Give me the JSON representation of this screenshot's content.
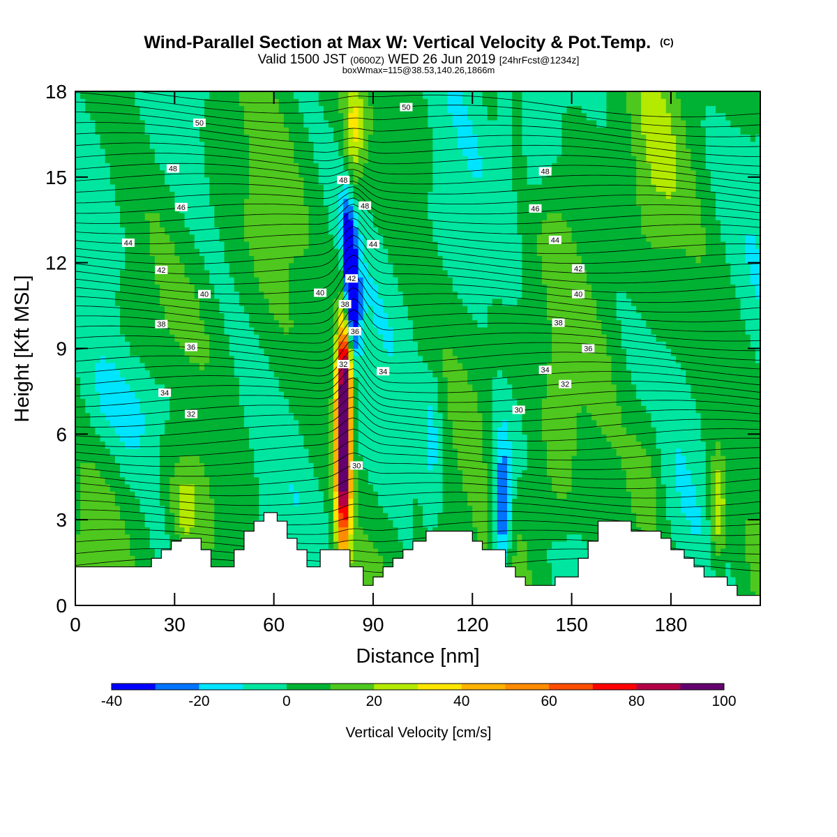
{
  "chart_data": {
    "type": "heatmap",
    "title": "Wind-Parallel Section at Max W: Vertical Velocity & Pot.Temp.",
    "title_mark": "(C)",
    "subtitle_parts": [
      "Valid 1500 JST ",
      "(0600Z)",
      " WED 26 Jun 2019 ",
      "[24hrFcst@1234z]"
    ],
    "subtitle2": "boxWmax=115@38.53,140.26,1866m",
    "xlabel": "Distance [nm]",
    "ylabel": "Height [Kft MSL]",
    "xlim": [
      0,
      207
    ],
    "ylim": [
      0,
      18
    ],
    "x_ticks": [
      0,
      30,
      60,
      90,
      120,
      150,
      180
    ],
    "y_ticks": [
      0,
      3,
      6,
      9,
      12,
      15,
      18
    ],
    "colorbar": {
      "label": "Vertical Velocity [cm/s]",
      "levels": [
        -40,
        -30,
        -20,
        -10,
        0,
        10,
        20,
        30,
        40,
        50,
        60,
        70,
        80,
        90,
        100
      ],
      "tick_labels": [
        "-40",
        "-20",
        "0",
        "20",
        "40",
        "60",
        "80",
        "100"
      ],
      "colors": [
        "#0000ff",
        "#0073ff",
        "#00e5ff",
        "#00e6a0",
        "#00b233",
        "#4ec81e",
        "#b4ea00",
        "#ffe600",
        "#ffb300",
        "#ff8c00",
        "#ff4d00",
        "#ff0000",
        "#b40046",
        "#64006e"
      ]
    },
    "terrain_kft": [
      [
        0,
        1.35
      ],
      [
        23,
        1.35
      ],
      [
        23,
        1.65
      ],
      [
        26,
        1.65
      ],
      [
        26,
        1.95
      ],
      [
        29,
        1.95
      ],
      [
        29,
        2.25
      ],
      [
        32,
        2.25
      ],
      [
        32,
        2.35
      ],
      [
        38,
        2.35
      ],
      [
        38,
        1.95
      ],
      [
        41,
        1.95
      ],
      [
        41,
        1.35
      ],
      [
        48,
        1.35
      ],
      [
        48,
        1.95
      ],
      [
        51,
        1.95
      ],
      [
        51,
        2.6
      ],
      [
        54,
        2.6
      ],
      [
        54,
        2.95
      ],
      [
        57,
        2.95
      ],
      [
        57,
        3.25
      ],
      [
        61,
        3.25
      ],
      [
        61,
        2.95
      ],
      [
        64,
        2.95
      ],
      [
        64,
        2.35
      ],
      [
        67,
        2.35
      ],
      [
        67,
        1.95
      ],
      [
        70,
        1.95
      ],
      [
        70,
        1.35
      ],
      [
        74,
        1.35
      ],
      [
        74,
        1.95
      ],
      [
        77,
        1.95
      ],
      [
        77,
        1.95
      ],
      [
        83,
        1.95
      ],
      [
        83,
        1.35
      ],
      [
        87,
        1.35
      ],
      [
        87,
        0.7
      ],
      [
        90,
        0.7
      ],
      [
        90,
        1.0
      ],
      [
        93,
        1.0
      ],
      [
        93,
        1.35
      ],
      [
        96,
        1.35
      ],
      [
        96,
        1.65
      ],
      [
        99,
        1.65
      ],
      [
        99,
        1.95
      ],
      [
        102,
        1.95
      ],
      [
        102,
        2.25
      ],
      [
        106,
        2.25
      ],
      [
        106,
        2.6
      ],
      [
        120,
        2.6
      ],
      [
        120,
        2.25
      ],
      [
        123,
        2.25
      ],
      [
        123,
        1.95
      ],
      [
        130,
        1.95
      ],
      [
        130,
        1.35
      ],
      [
        133,
        1.35
      ],
      [
        133,
        1.0
      ],
      [
        136,
        1.0
      ],
      [
        136,
        0.7
      ],
      [
        145,
        0.7
      ],
      [
        145,
        1.0
      ],
      [
        152,
        1.0
      ],
      [
        152,
        1.65
      ],
      [
        155,
        1.65
      ],
      [
        155,
        2.25
      ],
      [
        158,
        2.25
      ],
      [
        158,
        2.95
      ],
      [
        168,
        2.95
      ],
      [
        168,
        2.6
      ],
      [
        177,
        2.6
      ],
      [
        177,
        2.35
      ],
      [
        180,
        2.35
      ],
      [
        180,
        1.95
      ],
      [
        184,
        1.95
      ],
      [
        184,
        1.65
      ],
      [
        187,
        1.65
      ],
      [
        187,
        1.35
      ],
      [
        190,
        1.35
      ],
      [
        190,
        1.0
      ],
      [
        197,
        1.0
      ],
      [
        197,
        0.7
      ],
      [
        200,
        0.7
      ],
      [
        200,
        0.35
      ],
      [
        207,
        0.35
      ]
    ],
    "w_features": [
      {
        "x": 81,
        "y": 5.8,
        "amp": 115,
        "sx": 1.6,
        "sy": 2.7
      },
      {
        "x": 82,
        "y": 8.6,
        "amp": 35,
        "sx": 1.6,
        "sy": 0.9
      },
      {
        "x": 84,
        "y": 10.2,
        "amp": -45,
        "sx": 1.5,
        "sy": 1.3
      },
      {
        "x": 83,
        "y": 11.8,
        "amp": -38,
        "sx": 1.3,
        "sy": 1.2
      },
      {
        "x": 84,
        "y": 16.5,
        "amp": 25,
        "sx": 2.0,
        "sy": 1.6
      },
      {
        "x": 129,
        "y": 3.2,
        "amp": -45,
        "sx": 2.0,
        "sy": 1.4
      },
      {
        "x": 128,
        "y": 5.5,
        "amp": -15,
        "sx": 3.5,
        "sy": 1.2
      },
      {
        "x": 194,
        "y": 3.3,
        "amp": 30,
        "sx": 1.7,
        "sy": 1.4
      },
      {
        "x": 33,
        "y": 3.2,
        "amp": 18,
        "sx": 3,
        "sy": 1
      },
      {
        "x": 21,
        "y": 6.9,
        "amp": -14,
        "sx": 14,
        "sy": 1.3
      },
      {
        "x": 82,
        "y": 13.5,
        "amp": -20,
        "sx": 1.5,
        "sy": 1.3
      },
      {
        "x": 146,
        "y": 5.5,
        "amp": 14,
        "sx": 3.5,
        "sy": 2.5
      },
      {
        "x": 173,
        "y": 4.5,
        "amp": 12,
        "sx": 4,
        "sy": 2
      },
      {
        "x": 175,
        "y": 15,
        "amp": 10,
        "sx": 5,
        "sy": 2.5
      },
      {
        "x": 130,
        "y": 17,
        "amp": -15,
        "sx": 1.8,
        "sy": 1.5
      },
      {
        "x": 139,
        "y": 15.5,
        "amp": -14,
        "sx": 4,
        "sy": 1.5
      },
      {
        "x": 108,
        "y": 6,
        "amp": -12,
        "sx": 2,
        "sy": 2
      }
    ],
    "theta_contour_labels": [
      {
        "text": "50",
        "x": 37.5,
        "y": 16.9
      },
      {
        "text": "50",
        "x": 100,
        "y": 17.45
      },
      {
        "text": "48",
        "x": 29.5,
        "y": 15.3
      },
      {
        "text": "48",
        "x": 81,
        "y": 14.9
      },
      {
        "text": "48",
        "x": 87.5,
        "y": 14.0
      },
      {
        "text": "48",
        "x": 142,
        "y": 15.2
      },
      {
        "text": "46",
        "x": 32,
        "y": 13.95
      },
      {
        "text": "46",
        "x": 139,
        "y": 13.9
      },
      {
        "text": "44",
        "x": 16,
        "y": 12.7
      },
      {
        "text": "44",
        "x": 90,
        "y": 12.65
      },
      {
        "text": "44",
        "x": 145,
        "y": 12.8
      },
      {
        "text": "42",
        "x": 26,
        "y": 11.75
      },
      {
        "text": "42",
        "x": 83.5,
        "y": 11.45
      },
      {
        "text": "42",
        "x": 152,
        "y": 11.8
      },
      {
        "text": "40",
        "x": 39,
        "y": 10.9
      },
      {
        "text": "40",
        "x": 74,
        "y": 10.95
      },
      {
        "text": "40",
        "x": 152,
        "y": 10.9
      },
      {
        "text": "38",
        "x": 26,
        "y": 9.85
      },
      {
        "text": "38",
        "x": 81.5,
        "y": 10.55
      },
      {
        "text": "38",
        "x": 146,
        "y": 9.9
      },
      {
        "text": "36",
        "x": 35,
        "y": 9.05
      },
      {
        "text": "36",
        "x": 84.5,
        "y": 9.6
      },
      {
        "text": "36",
        "x": 155,
        "y": 9.0
      },
      {
        "text": "34",
        "x": 27,
        "y": 7.45
      },
      {
        "text": "34",
        "x": 93,
        "y": 8.2
      },
      {
        "text": "34",
        "x": 142,
        "y": 8.25
      },
      {
        "text": "32",
        "x": 35,
        "y": 6.7
      },
      {
        "text": "32",
        "x": 81,
        "y": 8.45
      },
      {
        "text": "32",
        "x": 148,
        "y": 7.75
      },
      {
        "text": "30",
        "x": 134,
        "y": 6.85
      },
      {
        "text": "30",
        "x": 85,
        "y": 4.9
      }
    ]
  }
}
